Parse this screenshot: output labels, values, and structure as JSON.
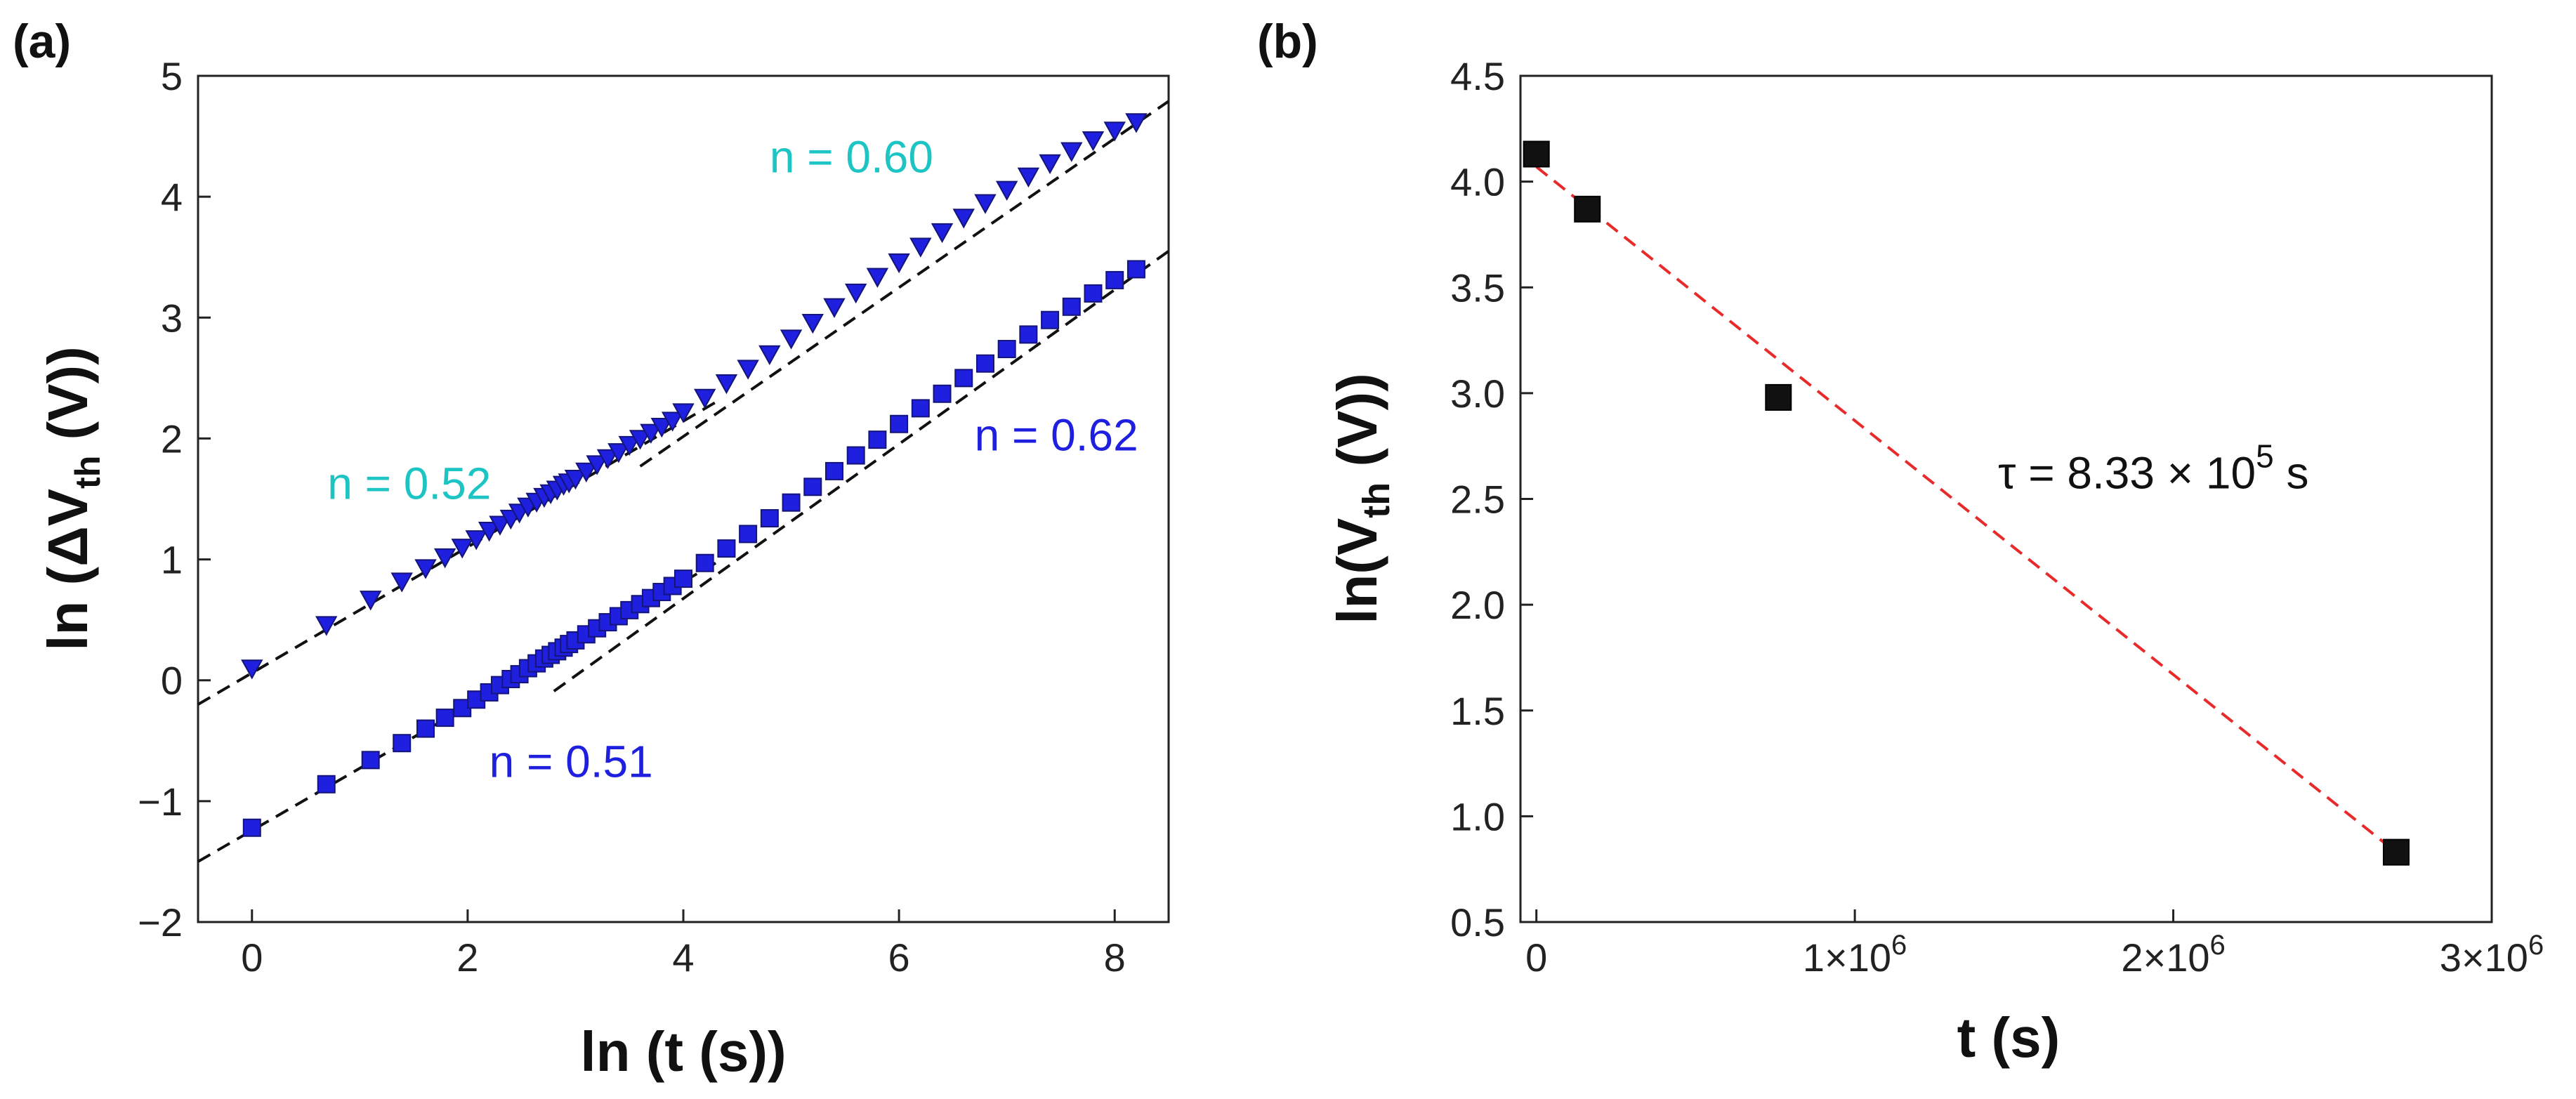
{
  "colors": {
    "cyan": "#1cc4c4",
    "blue": "#1f1fe0",
    "navy": "#1b1b8c",
    "black": "#111111",
    "red": "#e82a2a"
  },
  "chart_data": [
    {
      "panel": "(a)",
      "type": "scatter",
      "xlabel": {
        "prefix": "ln (t (s))"
      },
      "ylabel": {
        "prefix": "ln (",
        "delta": "Δ",
        "main": "V",
        "sub": "th",
        "suffix": " (V))"
      },
      "xlim": [
        -0.5,
        8.5
      ],
      "ylim": [
        -2,
        5
      ],
      "xticks": [
        0,
        2,
        4,
        6,
        8
      ],
      "yticks": [
        -2,
        -1,
        0,
        1,
        2,
        3,
        4,
        5
      ],
      "series": [
        {
          "name": "upper",
          "marker": "triangle-down",
          "color": "#1f1fe0",
          "x": [
            0,
            0.69,
            1.1,
            1.39,
            1.61,
            1.79,
            1.95,
            2.08,
            2.2,
            2.3,
            2.4,
            2.48,
            2.56,
            2.64,
            2.71,
            2.77,
            2.83,
            2.89,
            2.94,
            3.0,
            3.1,
            3.2,
            3.3,
            3.4,
            3.5,
            3.6,
            3.7,
            3.8,
            3.9,
            4.0,
            4.2,
            4.4,
            4.6,
            4.8,
            5.0,
            5.2,
            5.4,
            5.6,
            5.8,
            6.0,
            6.2,
            6.4,
            6.6,
            6.8,
            7.0,
            7.2,
            7.4,
            7.6,
            7.8,
            8.0,
            8.2
          ],
          "y": [
            0.1,
            0.46,
            0.67,
            0.82,
            0.93,
            1.02,
            1.1,
            1.17,
            1.24,
            1.29,
            1.34,
            1.39,
            1.44,
            1.48,
            1.52,
            1.55,
            1.58,
            1.62,
            1.64,
            1.67,
            1.73,
            1.79,
            1.84,
            1.89,
            1.95,
            2.0,
            2.05,
            2.1,
            2.15,
            2.22,
            2.34,
            2.46,
            2.58,
            2.7,
            2.83,
            2.96,
            3.09,
            3.21,
            3.34,
            3.46,
            3.59,
            3.71,
            3.83,
            3.95,
            4.06,
            4.17,
            4.28,
            4.38,
            4.47,
            4.55,
            4.62
          ]
        },
        {
          "name": "lower",
          "marker": "square",
          "color": "#1f1fe0",
          "x": [
            0,
            0.69,
            1.1,
            1.39,
            1.61,
            1.79,
            1.95,
            2.08,
            2.2,
            2.3,
            2.4,
            2.48,
            2.56,
            2.64,
            2.71,
            2.77,
            2.83,
            2.89,
            2.94,
            3.0,
            3.1,
            3.2,
            3.3,
            3.4,
            3.5,
            3.6,
            3.7,
            3.8,
            3.9,
            4.0,
            4.2,
            4.4,
            4.6,
            4.8,
            5.0,
            5.2,
            5.4,
            5.6,
            5.8,
            6.0,
            6.2,
            6.4,
            6.6,
            6.8,
            7.0,
            7.2,
            7.4,
            7.6,
            7.8,
            8.0,
            8.2
          ],
          "y": [
            -1.22,
            -0.86,
            -0.66,
            -0.52,
            -0.4,
            -0.31,
            -0.23,
            -0.16,
            -0.1,
            -0.04,
            0.01,
            0.05,
            0.1,
            0.14,
            0.18,
            0.21,
            0.24,
            0.27,
            0.3,
            0.33,
            0.38,
            0.43,
            0.48,
            0.53,
            0.58,
            0.63,
            0.68,
            0.73,
            0.78,
            0.84,
            0.97,
            1.09,
            1.21,
            1.34,
            1.47,
            1.6,
            1.73,
            1.86,
            1.99,
            2.12,
            2.25,
            2.37,
            2.5,
            2.62,
            2.74,
            2.86,
            2.98,
            3.09,
            3.2,
            3.31,
            3.4
          ]
        }
      ],
      "fit_lines": [
        {
          "x": [
            -0.5,
            4.3
          ],
          "y": [
            -0.2,
            2.3
          ]
        },
        {
          "x": [
            3.6,
            8.5
          ],
          "y": [
            1.77,
            4.79
          ]
        },
        {
          "x": [
            -0.5,
            4.3
          ],
          "y": [
            -1.5,
            0.97
          ]
        },
        {
          "x": [
            2.8,
            8.5
          ],
          "y": [
            -0.09,
            3.55
          ]
        }
      ],
      "annotations": [
        {
          "text": "n = 0.60",
          "x": 4.8,
          "y": 4.2,
          "color": "#1cc4c4"
        },
        {
          "text": "n = 0.52",
          "x": 0.7,
          "y": 1.5,
          "color": "#1cc4c4"
        },
        {
          "text": "n = 0.62",
          "x": 6.7,
          "y": 1.9,
          "color": "#1f1fe0"
        },
        {
          "text": "n = 0.51",
          "x": 2.2,
          "y": -0.8,
          "color": "#1f1fe0"
        }
      ]
    },
    {
      "panel": "(b)",
      "type": "scatter",
      "xlabel": {
        "prefix": "t (s)"
      },
      "ylabel": {
        "prefix": "ln(",
        "main": "V",
        "sub": "th",
        "suffix": " (V))"
      },
      "xlim": [
        -50000,
        3000000
      ],
      "ylim": [
        0.5,
        4.5
      ],
      "xticks": [
        0,
        1000000,
        2000000,
        3000000
      ],
      "xticklabels": [
        {
          "m": "0",
          "e": ""
        },
        {
          "m": "1×10",
          "e": "6"
        },
        {
          "m": "2×10",
          "e": "6"
        },
        {
          "m": "3×10",
          "e": "6"
        }
      ],
      "yticks": [
        0.5,
        1.0,
        1.5,
        2.0,
        2.5,
        3.0,
        3.5,
        4.0,
        4.5
      ],
      "series": [
        {
          "name": "data",
          "marker": "square",
          "color": "#111111",
          "x": [
            0,
            160000,
            760000,
            2700000
          ],
          "y": [
            4.13,
            3.87,
            2.98,
            0.83
          ]
        }
      ],
      "fit_lines": [
        {
          "x": [
            0,
            2700000
          ],
          "y": [
            4.07,
            0.83
          ],
          "color": "#e82a2a",
          "dash": true
        }
      ],
      "annotations": [
        {
          "text": "τ = 8.33 × 10",
          "sup": "5",
          "unit": " s",
          "x": 1450000,
          "y": 2.55,
          "color": "#111111"
        }
      ]
    }
  ]
}
